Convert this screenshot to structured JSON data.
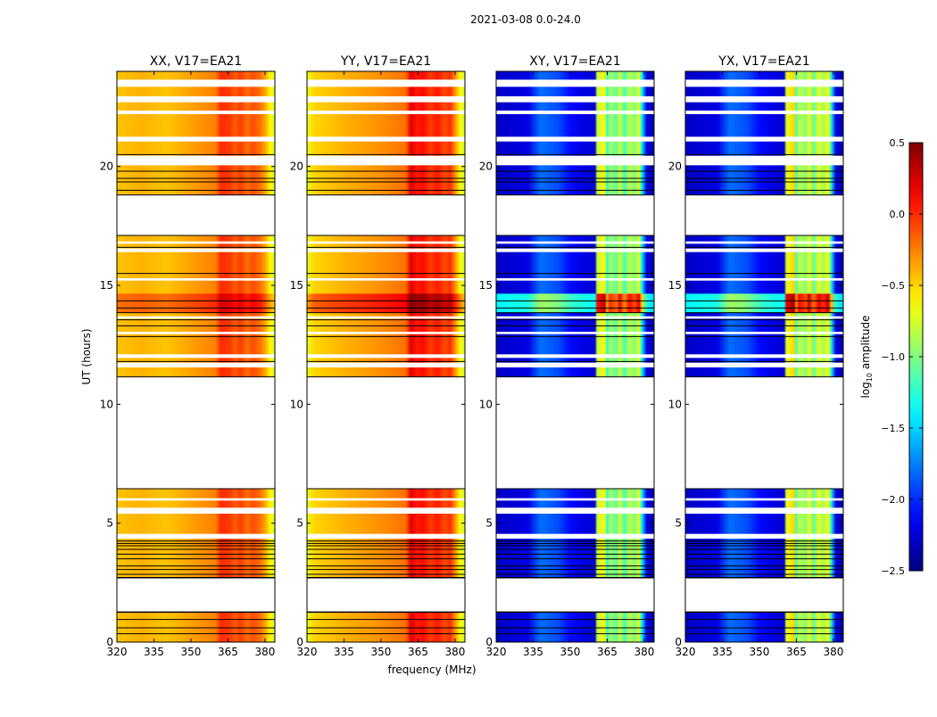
{
  "chart_data": {
    "type": "heatmap",
    "title": "2021-03-08 0.0-24.0",
    "xlabel": "frequency (MHz)",
    "ylabel": "UT (hours)",
    "xlim": [
      320,
      384
    ],
    "ylim": [
      0,
      24
    ],
    "xticks": [
      320,
      335,
      350,
      365,
      380
    ],
    "yticks": [
      0,
      5,
      10,
      15,
      20
    ],
    "colorbar": {
      "label": "log10 amplitude",
      "label_main": "log",
      "label_sub": "10",
      "label_rest": " amplitude",
      "range": [
        -2.5,
        0.5
      ],
      "ticks": [
        "0.5",
        "0.0",
        "−0.5",
        "−1.0",
        "−1.5",
        "−2.0",
        "−2.5"
      ],
      "tick_values": [
        0.5,
        0.0,
        -0.5,
        -1.0,
        -1.5,
        -2.0,
        -2.5
      ],
      "colormap": "jet"
    },
    "data_segments_hours": [
      [
        0,
        1.27
      ],
      [
        2.7,
        6.45
      ],
      [
        11.15,
        17.1
      ],
      [
        18.8,
        24
      ]
    ],
    "blank_stripes_hours": [
      [
        4.35,
        4.55
      ],
      [
        5.4,
        5.65
      ],
      [
        5.95,
        6.05
      ],
      [
        11.55,
        11.75
      ],
      [
        11.95,
        12.1
      ],
      [
        12.95,
        13.05
      ],
      [
        13.6,
        13.7
      ],
      [
        15.2,
        15.3
      ],
      [
        16.4,
        16.55
      ],
      [
        16.75,
        16.85
      ],
      [
        20.05,
        20.45
      ],
      [
        21.05,
        21.25
      ],
      [
        22.2,
        22.35
      ],
      [
        22.7,
        22.95
      ],
      [
        23.35,
        23.65
      ]
    ],
    "black_lines_hours": [
      2.72,
      2.85,
      3.05,
      3.2,
      3.5,
      3.7,
      3.9,
      4.05,
      4.15,
      4.25,
      0.35,
      0.6,
      0.95,
      1.25,
      11.8,
      12.85,
      13.3,
      13.55,
      13.85,
      14.05,
      14.35,
      15.5,
      16.6,
      19.0,
      19.35,
      19.5,
      19.8,
      20.5
    ],
    "bright_segment_hours": [
      13.85,
      14.65
    ],
    "panels": [
      {
        "title": "XX, V17=EA21",
        "spectrum": [
          [
            320,
            -0.45
          ],
          [
            330,
            -0.4
          ],
          [
            340,
            -0.45
          ],
          [
            350,
            -0.35
          ],
          [
            360,
            -0.25
          ],
          [
            362,
            0.0
          ],
          [
            366,
            -0.05
          ],
          [
            368,
            -0.15
          ],
          [
            370,
            -0.05
          ],
          [
            373,
            -0.2
          ],
          [
            375,
            -0.1
          ],
          [
            378,
            -0.2
          ],
          [
            380,
            -0.35
          ],
          [
            382,
            -0.6
          ],
          [
            384,
            -0.75
          ]
        ],
        "bright_boost": 0.25
      },
      {
        "title": "YY, V17=EA21",
        "spectrum": [
          [
            320,
            -0.7
          ],
          [
            323,
            -0.5
          ],
          [
            335,
            -0.4
          ],
          [
            350,
            -0.3
          ],
          [
            360,
            -0.2
          ],
          [
            362,
            0.2
          ],
          [
            365,
            0.05
          ],
          [
            367,
            0.1
          ],
          [
            370,
            -0.05
          ],
          [
            373,
            0.05
          ],
          [
            376,
            -0.1
          ],
          [
            378,
            0.0
          ],
          [
            380,
            -0.3
          ],
          [
            382,
            -0.6
          ],
          [
            384,
            -0.8
          ]
        ],
        "bright_boost": 0.35
      },
      {
        "title": "XY, V17=EA21",
        "spectrum": [
          [
            320,
            -2.3
          ],
          [
            333,
            -2.2
          ],
          [
            338,
            -1.8
          ],
          [
            345,
            -1.9
          ],
          [
            350,
            -2.1
          ],
          [
            355,
            -2.2
          ],
          [
            360,
            -2.25
          ],
          [
            361,
            -0.8
          ],
          [
            364,
            -0.6
          ],
          [
            365,
            -1.3
          ],
          [
            366,
            -0.9
          ],
          [
            369,
            -1.1
          ],
          [
            370,
            -0.7
          ],
          [
            372,
            -1.2
          ],
          [
            374,
            -0.8
          ],
          [
            376,
            -1.0
          ],
          [
            378,
            -0.7
          ],
          [
            379,
            -1.4
          ],
          [
            381,
            -2.2
          ],
          [
            384,
            -2.4
          ]
        ],
        "bright_boost": 0.9
      },
      {
        "title": "YX, V17=EA21",
        "spectrum": [
          [
            320,
            -2.3
          ],
          [
            333,
            -2.2
          ],
          [
            338,
            -1.8
          ],
          [
            345,
            -1.9
          ],
          [
            350,
            -2.1
          ],
          [
            355,
            -2.2
          ],
          [
            360,
            -2.25
          ],
          [
            361,
            -0.7
          ],
          [
            364,
            -0.5
          ],
          [
            365,
            -1.2
          ],
          [
            366,
            -0.8
          ],
          [
            369,
            -1.0
          ],
          [
            370,
            -0.6
          ],
          [
            372,
            -1.1
          ],
          [
            374,
            -0.7
          ],
          [
            376,
            -0.9
          ],
          [
            378,
            -0.6
          ],
          [
            379,
            -1.3
          ],
          [
            381,
            -2.2
          ],
          [
            384,
            -2.4
          ]
        ],
        "bright_boost": 0.9
      }
    ]
  }
}
